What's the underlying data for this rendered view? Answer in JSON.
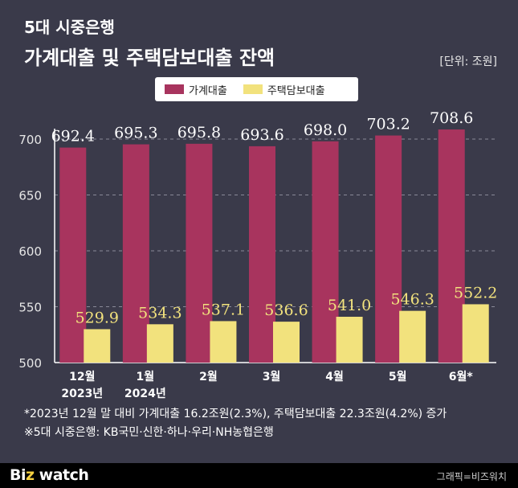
{
  "header": {
    "subtitle": "5대 시중은행",
    "title": "가계대출 및 주택담보대출 잔액",
    "unit": "[단위: 조원]"
  },
  "colors": {
    "household": "#a8345e",
    "mortgage": "#f2e27d",
    "background": "#3a3a4a"
  },
  "chart_data": {
    "type": "bar",
    "categories": [
      "12월\n2023년",
      "1월\n2024년",
      "2월",
      "3월",
      "4월",
      "5월",
      "6월*"
    ],
    "series": [
      {
        "name": "가계대출",
        "values": [
          692.4,
          695.3,
          695.8,
          693.6,
          698.0,
          703.2,
          708.6
        ]
      },
      {
        "name": "주택담보대출",
        "values": [
          529.9,
          534.3,
          537.1,
          536.6,
          541.0,
          546.3,
          552.2
        ]
      }
    ],
    "value_labels": {
      "household": [
        "692.4",
        "695.3",
        "695.8",
        "693.6",
        "698.0",
        "703.2",
        "708.6"
      ],
      "mortgage": [
        "529.9",
        "534.3",
        "537.1",
        "536.6",
        "541.0",
        "546.3",
        "552.2"
      ]
    },
    "yticks": [
      500,
      550,
      600,
      650,
      700
    ],
    "ylim": [
      500,
      720
    ],
    "grid": true,
    "legend": "top-center"
  },
  "notes": {
    "line1": "*2023년 12월 말 대비 가계대출 16.2조원(2.3%), 주택담보대출 22.3조원(4.2%) 증가",
    "line2": "※5대 시중은행: KB국민·신한·하나·우리·NH농협은행"
  },
  "footer": {
    "logo_b": "B",
    "logo_i": "i",
    "logo_z": "z",
    "logo_rest": " watch",
    "credit": "그래픽=비즈워치"
  }
}
